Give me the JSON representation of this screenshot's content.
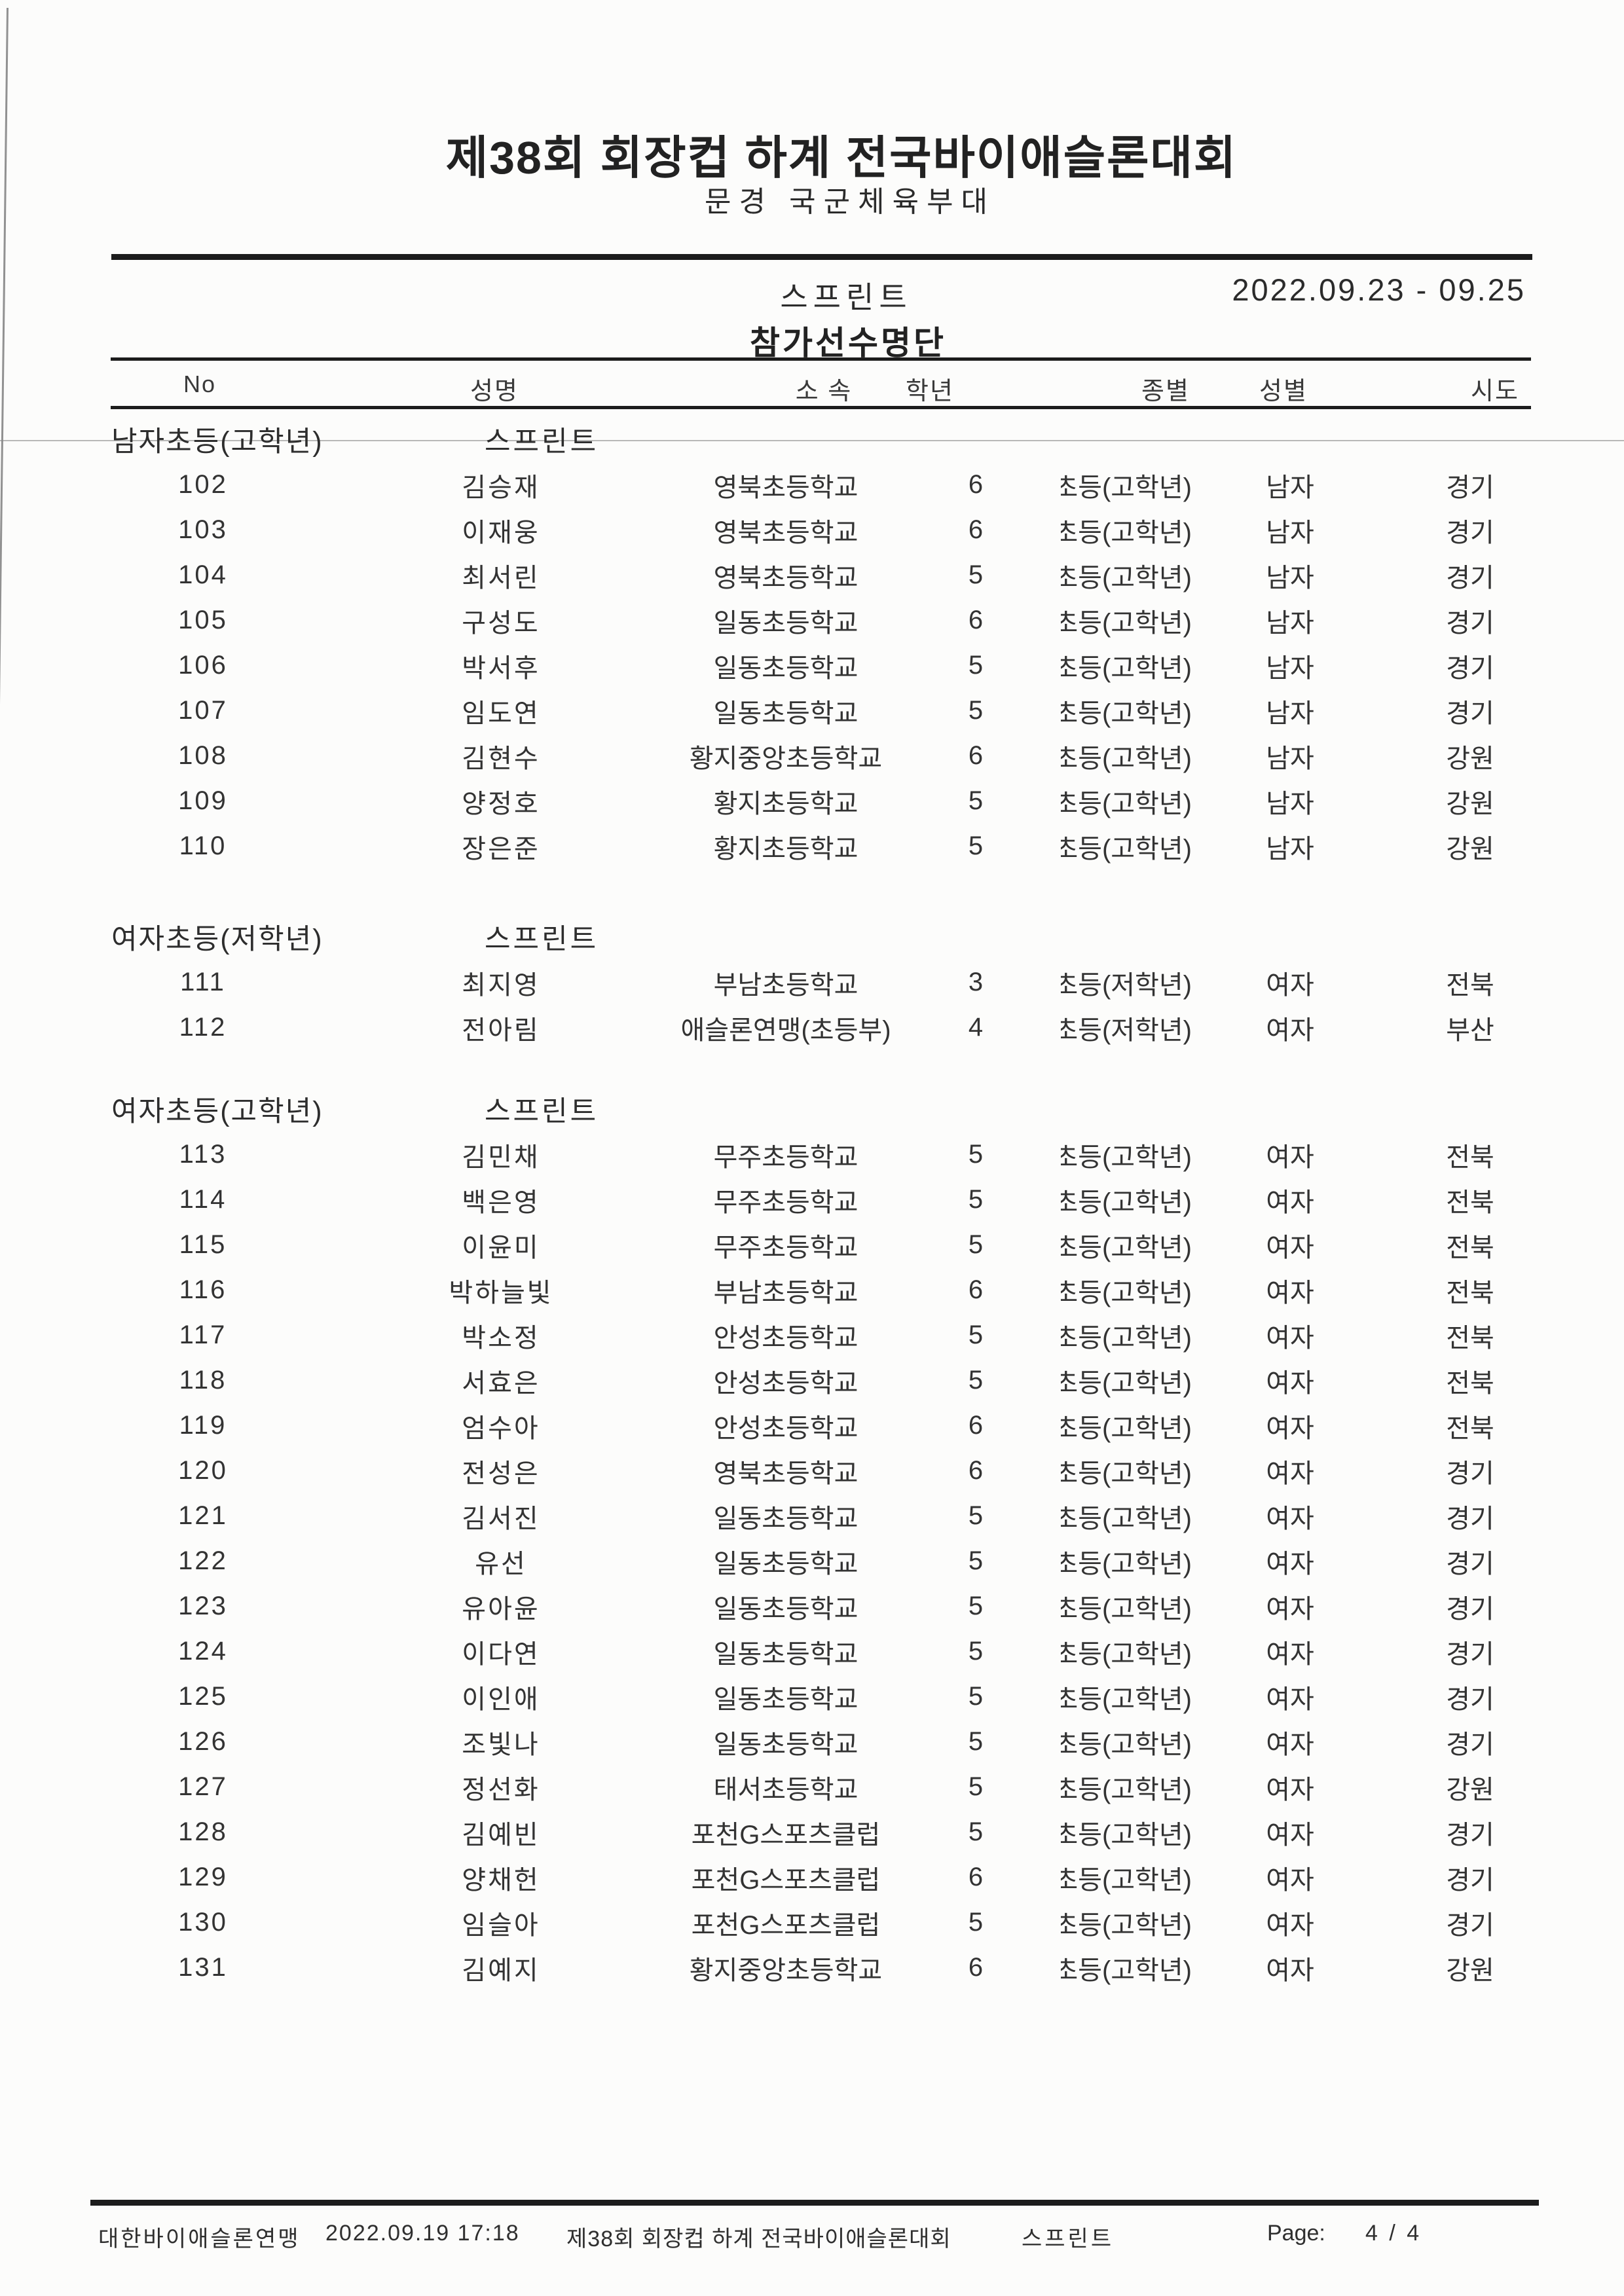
{
  "doc": {
    "title": "제38회 회장컵 하계 전국바이애슬론대회",
    "subtitle": "문경 국군체육부대",
    "event": "스프린트",
    "date_range": "2022.09.23 - 09.25",
    "list_title": "참가선수명단"
  },
  "table": {
    "columns": [
      "No",
      "성명",
      "소 속",
      "학년",
      "종별",
      "성별",
      "시도"
    ],
    "sections": [
      {
        "label": "남자초등(고학년)",
        "event": "스프린트",
        "rows": [
          [
            "102",
            "김승재",
            "영북초등학교",
            "6",
            "초등(고학년)",
            "남자",
            "경기"
          ],
          [
            "103",
            "이재웅",
            "영북초등학교",
            "6",
            "초등(고학년)",
            "남자",
            "경기"
          ],
          [
            "104",
            "최서린",
            "영북초등학교",
            "5",
            "초등(고학년)",
            "남자",
            "경기"
          ],
          [
            "105",
            "구성도",
            "일동초등학교",
            "6",
            "초등(고학년)",
            "남자",
            "경기"
          ],
          [
            "106",
            "박서후",
            "일동초등학교",
            "5",
            "초등(고학년)",
            "남자",
            "경기"
          ],
          [
            "107",
            "임도연",
            "일동초등학교",
            "5",
            "초등(고학년)",
            "남자",
            "경기"
          ],
          [
            "108",
            "김현수",
            "황지중앙초등학교",
            "6",
            "초등(고학년)",
            "남자",
            "강원"
          ],
          [
            "109",
            "양정호",
            "황지초등학교",
            "5",
            "초등(고학년)",
            "남자",
            "강원"
          ],
          [
            "110",
            "장은준",
            "황지초등학교",
            "5",
            "초등(고학년)",
            "남자",
            "강원"
          ]
        ]
      },
      {
        "label": "여자초등(저학년)",
        "event": "스프린트",
        "rows": [
          [
            "111",
            "최지영",
            "부남초등학교",
            "3",
            "초등(저학년)",
            "여자",
            "전북"
          ],
          [
            "112",
            "전아림",
            "애슬론연맹(초등부)",
            "4",
            "초등(저학년)",
            "여자",
            "부산"
          ]
        ]
      },
      {
        "label": "여자초등(고학년)",
        "event": "스프린트",
        "rows": [
          [
            "113",
            "김민채",
            "무주초등학교",
            "5",
            "초등(고학년)",
            "여자",
            "전북"
          ],
          [
            "114",
            "백은영",
            "무주초등학교",
            "5",
            "초등(고학년)",
            "여자",
            "전북"
          ],
          [
            "115",
            "이윤미",
            "무주초등학교",
            "5",
            "초등(고학년)",
            "여자",
            "전북"
          ],
          [
            "116",
            "박하늘빛",
            "부남초등학교",
            "6",
            "초등(고학년)",
            "여자",
            "전북"
          ],
          [
            "117",
            "박소정",
            "안성초등학교",
            "5",
            "초등(고학년)",
            "여자",
            "전북"
          ],
          [
            "118",
            "서효은",
            "안성초등학교",
            "5",
            "초등(고학년)",
            "여자",
            "전북"
          ],
          [
            "119",
            "엄수아",
            "안성초등학교",
            "6",
            "초등(고학년)",
            "여자",
            "전북"
          ],
          [
            "120",
            "전성은",
            "영북초등학교",
            "6",
            "초등(고학년)",
            "여자",
            "경기"
          ],
          [
            "121",
            "김서진",
            "일동초등학교",
            "5",
            "초등(고학년)",
            "여자",
            "경기"
          ],
          [
            "122",
            "유선",
            "일동초등학교",
            "5",
            "초등(고학년)",
            "여자",
            "경기"
          ],
          [
            "123",
            "유아윤",
            "일동초등학교",
            "5",
            "초등(고학년)",
            "여자",
            "경기"
          ],
          [
            "124",
            "이다연",
            "일동초등학교",
            "5",
            "초등(고학년)",
            "여자",
            "경기"
          ],
          [
            "125",
            "이인애",
            "일동초등학교",
            "5",
            "초등(고학년)",
            "여자",
            "경기"
          ],
          [
            "126",
            "조빛나",
            "일동초등학교",
            "5",
            "초등(고학년)",
            "여자",
            "경기"
          ],
          [
            "127",
            "정선화",
            "태서초등학교",
            "5",
            "초등(고학년)",
            "여자",
            "강원"
          ],
          [
            "128",
            "김예빈",
            "포천G스포츠클럽",
            "5",
            "초등(고학년)",
            "여자",
            "경기"
          ],
          [
            "129",
            "양채헌",
            "포천G스포츠클럽",
            "6",
            "초등(고학년)",
            "여자",
            "경기"
          ],
          [
            "130",
            "임슬아",
            "포천G스포츠클럽",
            "5",
            "초등(고학년)",
            "여자",
            "경기"
          ],
          [
            "131",
            "김예지",
            "황지중앙초등학교",
            "6",
            "초등(고학년)",
            "여자",
            "강원"
          ]
        ]
      }
    ]
  },
  "footer": {
    "org": "대한바이애슬론연맹",
    "printed": "2022.09.19 17:18",
    "title": "제38회 회장컵 하계 전국바이애슬론대회",
    "event": "스프린트",
    "page_label": "Page:",
    "page": "4 / 4"
  }
}
